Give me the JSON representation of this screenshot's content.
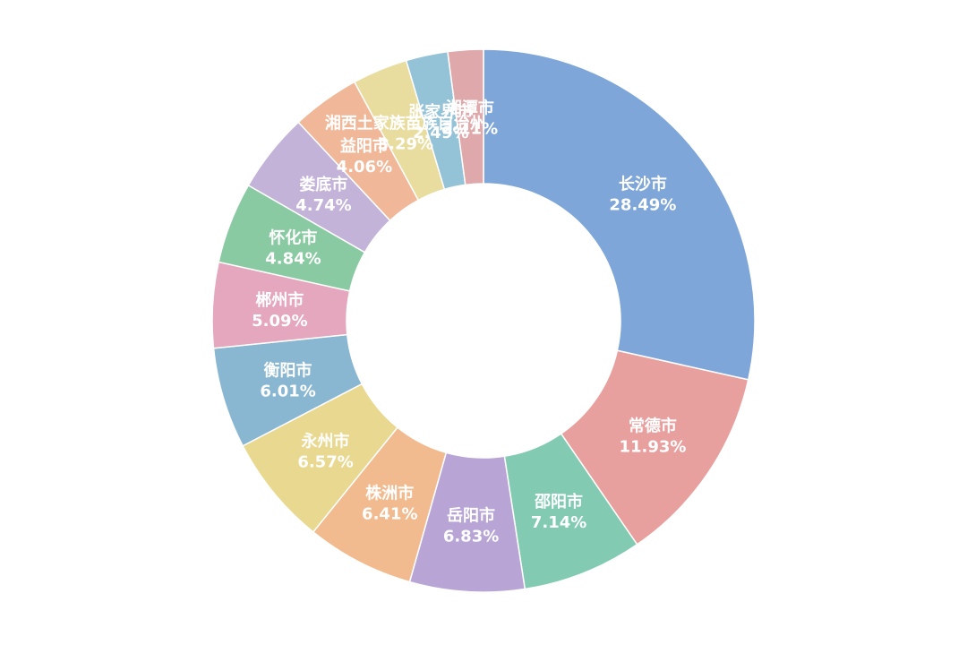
{
  "chart_data": {
    "type": "pie",
    "variant": "donut",
    "legend": "none",
    "slices": [
      {
        "label": "长沙市",
        "value": 28.49,
        "value_text": "28.49%",
        "color": "#7fa6d9"
      },
      {
        "label": "常德市",
        "value": 11.93,
        "value_text": "11.93%",
        "color": "#e8a09f"
      },
      {
        "label": "邵阳市",
        "value": 7.14,
        "value_text": "7.14%",
        "color": "#82cbb2"
      },
      {
        "label": "岳阳市",
        "value": 6.83,
        "value_text": "6.83%",
        "color": "#b8a5d6"
      },
      {
        "label": "株洲市",
        "value": 6.41,
        "value_text": "6.41%",
        "color": "#f2bb8f"
      },
      {
        "label": "永州市",
        "value": 6.57,
        "value_text": "6.57%",
        "color": "#e9d88f"
      },
      {
        "label": "衡阳市",
        "value": 6.01,
        "value_text": "6.01%",
        "color": "#89b7d1"
      },
      {
        "label": "郴州市",
        "value": 5.09,
        "value_text": "5.09%",
        "color": "#e4a7bd"
      },
      {
        "label": "怀化市",
        "value": 4.84,
        "value_text": "4.84%",
        "color": "#8acaa3"
      },
      {
        "label": "娄底市",
        "value": 4.74,
        "value_text": "4.74%",
        "color": "#c4b3d8"
      },
      {
        "label": "益阳市",
        "value": 4.06,
        "value_text": "4.06%",
        "color": "#f0b898"
      },
      {
        "label": "湘西土家族苗族自治州",
        "value": 3.29,
        "value_text": "3.29%",
        "color": "#e8dc9e"
      },
      {
        "label": "张家界市",
        "value": 2.49,
        "value_text": "2.49%",
        "color": "#94c2d6"
      },
      {
        "label": "湘潭市",
        "value": 2.11,
        "value_text": "2.11%",
        "color": "#dfa8aa"
      }
    ]
  }
}
